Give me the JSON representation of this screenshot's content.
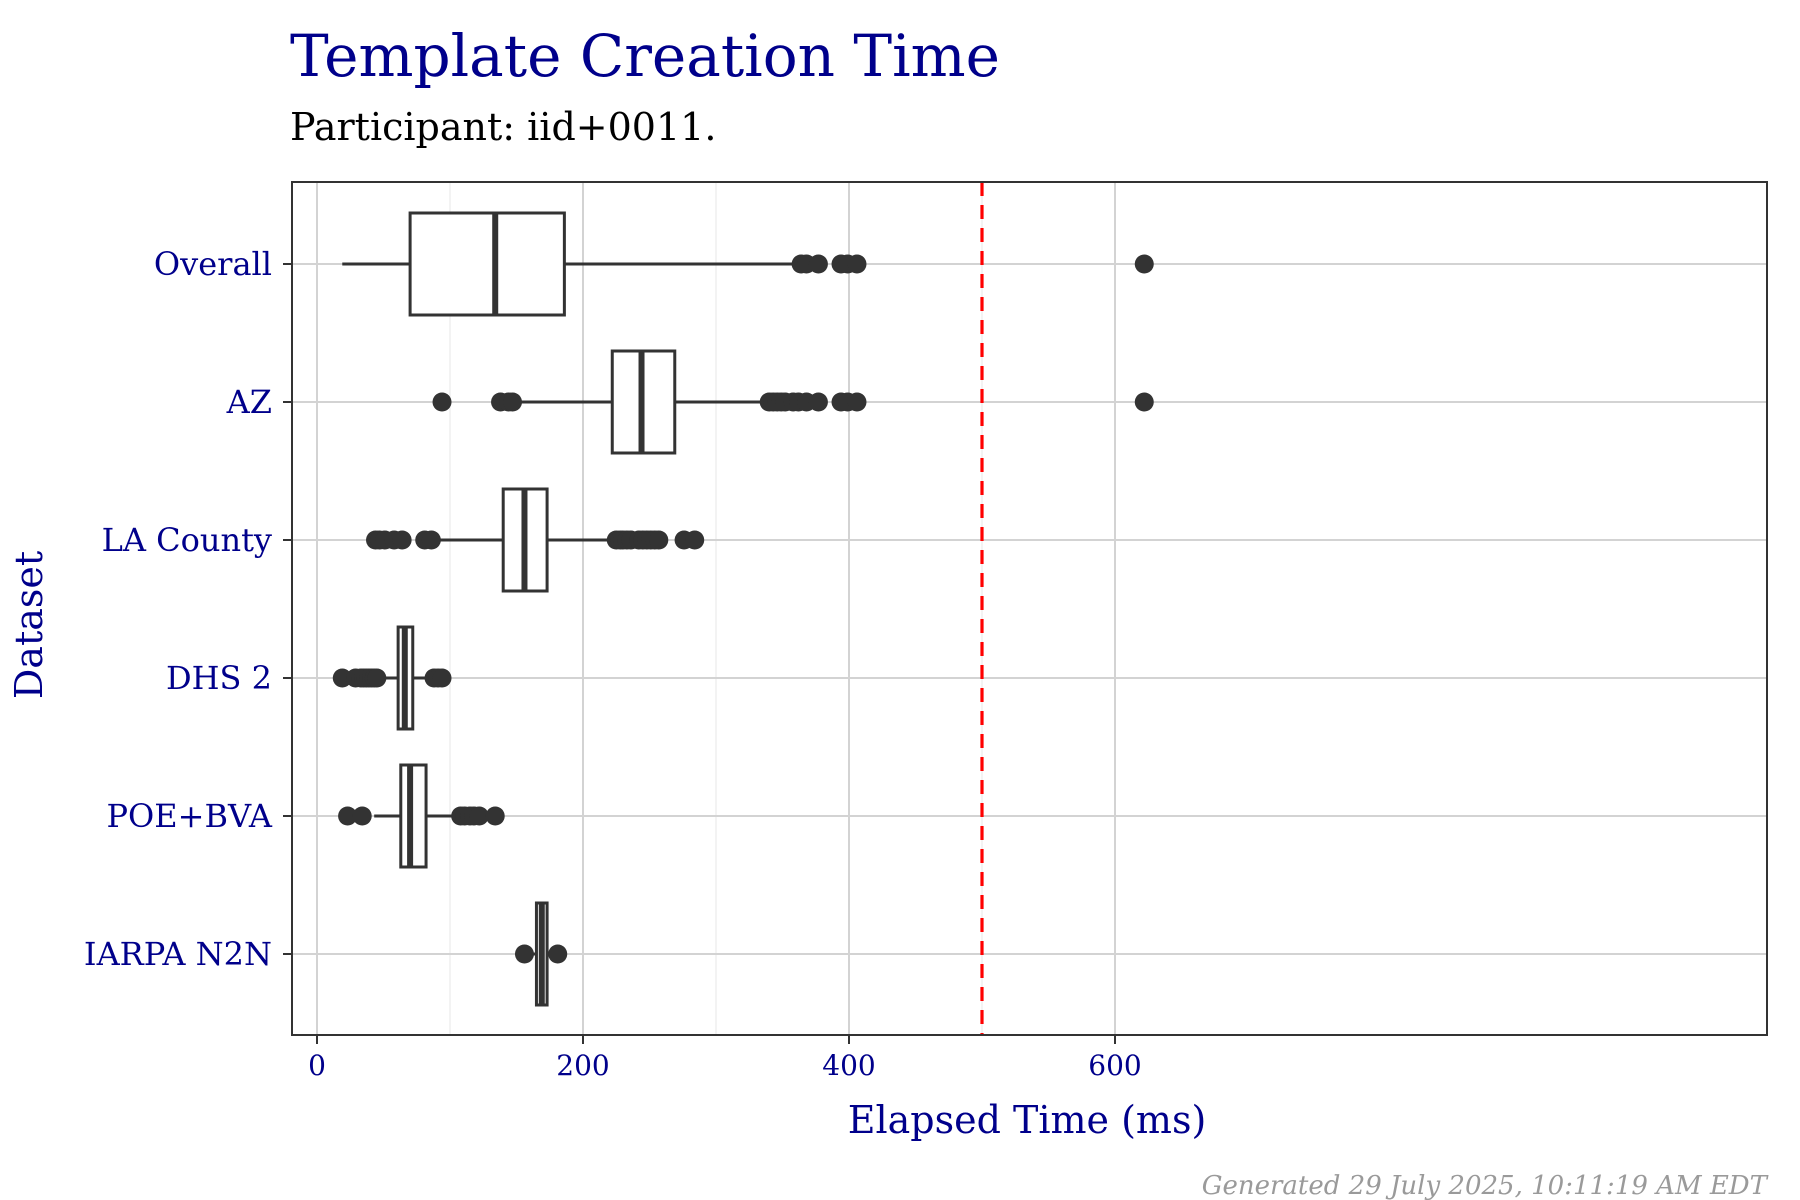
{
  "chart_data": {
    "type": "boxplot",
    "title": "Template Creation Time",
    "subtitle": "Participant: iid+0011.",
    "xlabel": "Elapsed Time (ms)",
    "ylabel": "Dataset",
    "xlim": [
      -12,
      655
    ],
    "x_ticks": [
      0,
      200,
      400,
      600
    ],
    "x_minor_ticks": [
      100,
      300,
      500
    ],
    "grid": true,
    "threshold_line": {
      "value": 500,
      "color": "#FF0000",
      "style": "dashed"
    },
    "caption": "Generated 29 July 2025, 10:11:19 AM EDT",
    "categories": [
      "Overall",
      "AZ",
      "LA County",
      "DHS 2",
      "POE+BVA",
      "IARPA N2N"
    ],
    "series": [
      {
        "category": "Overall",
        "whisker_low": 19,
        "q1": 70,
        "median": 134,
        "q3": 186,
        "whisker_high": 360,
        "outliers": [
          364,
          368,
          377,
          394,
          399,
          406,
          622
        ]
      },
      {
        "category": "AZ",
        "whisker_low": 150,
        "q1": 222,
        "median": 244,
        "q3": 269,
        "whisker_high": 340,
        "outliers": [
          94,
          138,
          144,
          147,
          340,
          343,
          346,
          349,
          352,
          358,
          362,
          368,
          377,
          394,
          399,
          406,
          622
        ]
      },
      {
        "category": "LA County",
        "whisker_low": 88,
        "q1": 140,
        "median": 156,
        "q3": 173,
        "whisker_high": 222,
        "outliers": [
          44,
          47,
          51,
          58,
          64,
          81,
          86,
          225,
          228,
          230,
          233,
          236,
          242,
          245,
          248,
          251,
          254,
          257,
          276,
          284
        ]
      },
      {
        "category": "DHS 2",
        "whisker_low": 45,
        "q1": 61,
        "median": 66,
        "q3": 72,
        "whisker_high": 85,
        "outliers": [
          19,
          29,
          33,
          35,
          37,
          39,
          41,
          43,
          45,
          88,
          91,
          94
        ]
      },
      {
        "category": "POE+BVA",
        "whisker_low": 43,
        "q1": 63,
        "median": 70,
        "q3": 82,
        "whisker_high": 108,
        "outliers": [
          23,
          34,
          108,
          111,
          115,
          118,
          122,
          134
        ]
      },
      {
        "category": "IARPA N2N",
        "whisker_low": 156,
        "q1": 165,
        "median": 169,
        "q3": 173,
        "whisker_high": 182,
        "outliers": [
          156,
          181
        ]
      }
    ]
  },
  "colors": {
    "title": "#00008B",
    "axis_text": "#00008B",
    "box": "#333333",
    "threshold": "#FF0000",
    "grid_major": "#D3D3D3",
    "grid_minor": "#EBEBEB",
    "caption": "#9A9A9A"
  }
}
